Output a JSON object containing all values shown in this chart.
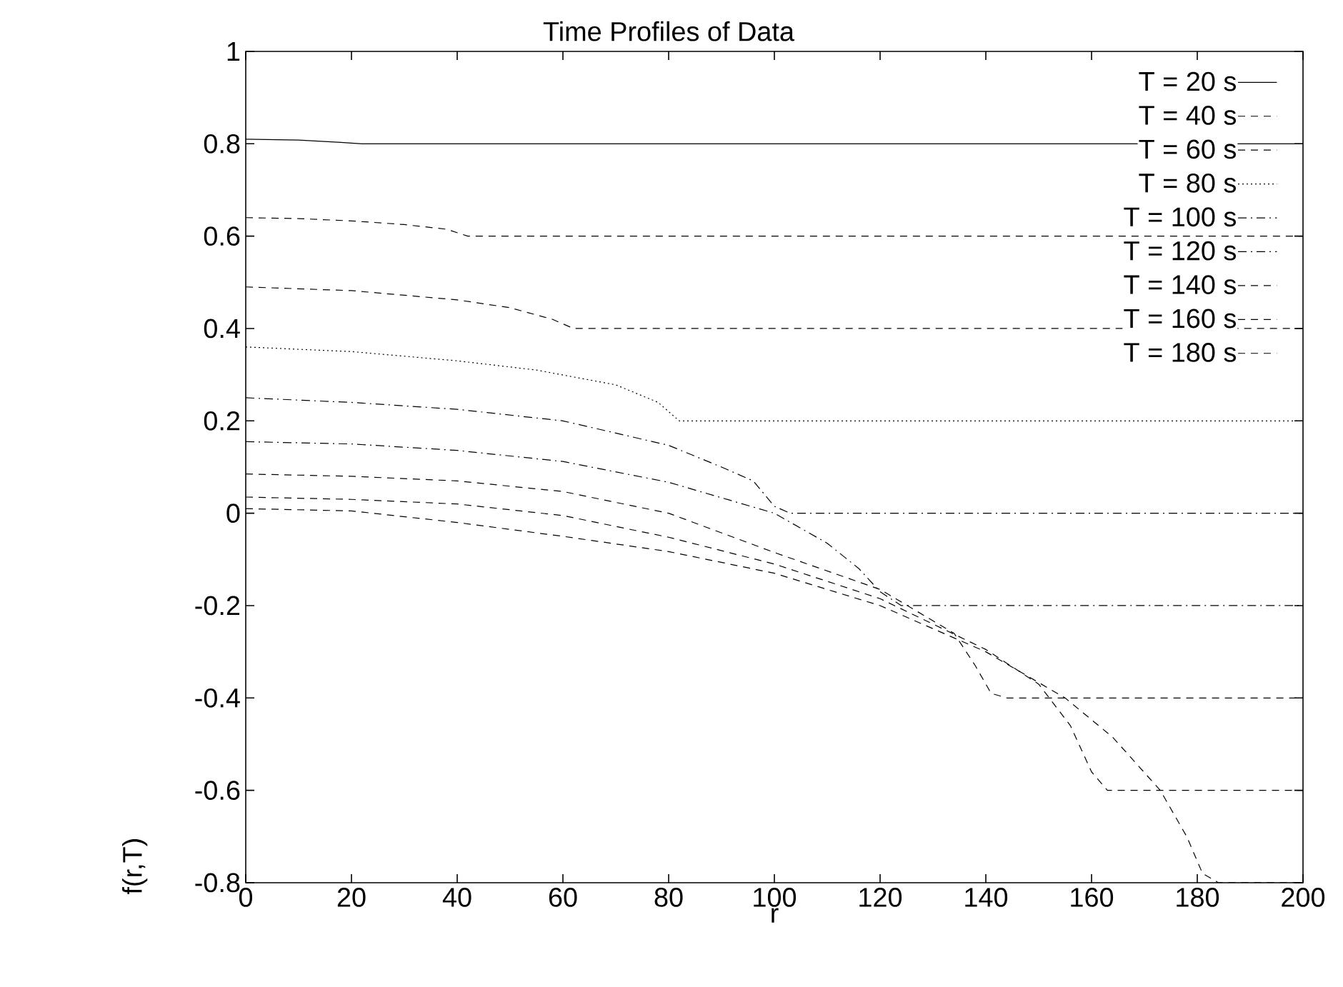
{
  "chart_data": {
    "type": "line",
    "title": "Time Profiles of Data",
    "xlabel": "r",
    "ylabel": "f(r,T)",
    "xlim": [
      0,
      200
    ],
    "ylim": [
      -0.8,
      1
    ],
    "xticks": [
      0,
      20,
      40,
      60,
      80,
      100,
      120,
      140,
      160,
      180,
      200
    ],
    "yticks": [
      -0.8,
      -0.6,
      -0.4,
      -0.2,
      0,
      0.2,
      0.4,
      0.6,
      0.8,
      1
    ],
    "grid": false,
    "legend": "top right",
    "marker": "none",
    "series": [
      {
        "name": "T = 20 s",
        "color": "#000000",
        "line_style": "solid",
        "x": [
          0,
          10,
          18,
          22,
          200
        ],
        "values": [
          0.81,
          0.808,
          0.803,
          0.8,
          0.8
        ]
      },
      {
        "name": "T = 40 s",
        "color": "#000000",
        "line_style": "dashed",
        "x": [
          0,
          10,
          20,
          30,
          38,
          42,
          200
        ],
        "values": [
          0.64,
          0.638,
          0.633,
          0.625,
          0.615,
          0.6,
          0.6
        ]
      },
      {
        "name": "T = 60 s",
        "color": "#000000",
        "line_style": "dashed",
        "x": [
          0,
          20,
          40,
          50,
          58,
          62,
          200
        ],
        "values": [
          0.49,
          0.482,
          0.462,
          0.445,
          0.42,
          0.4,
          0.4
        ]
      },
      {
        "name": "T = 80 s",
        "color": "#000000",
        "line_style": "dotted",
        "x": [
          0,
          20,
          40,
          55,
          70,
          78,
          82,
          200
        ],
        "values": [
          0.36,
          0.35,
          0.33,
          0.31,
          0.278,
          0.24,
          0.2,
          0.2
        ]
      },
      {
        "name": "T = 100 s",
        "color": "#000000",
        "line_style": "dashdot",
        "x": [
          0,
          20,
          40,
          60,
          80,
          90,
          96,
          100,
          103,
          200
        ],
        "values": [
          0.25,
          0.24,
          0.225,
          0.2,
          0.147,
          0.1,
          0.07,
          0.015,
          0,
          0
        ]
      },
      {
        "name": "T = 120 s",
        "color": "#000000",
        "line_style": "dashdot",
        "x": [
          0,
          20,
          40,
          60,
          80,
          100,
          110,
          116,
          120,
          124,
          200
        ],
        "values": [
          0.155,
          0.15,
          0.136,
          0.112,
          0.067,
          0.0,
          -0.065,
          -0.12,
          -0.17,
          -0.2,
          -0.2
        ]
      },
      {
        "name": "T = 140 s",
        "color": "#000000",
        "line_style": "dashed",
        "x": [
          0,
          20,
          40,
          60,
          80,
          100,
          120,
          134,
          138,
          141,
          144,
          200
        ],
        "values": [
          0.085,
          0.08,
          0.07,
          0.047,
          0.0,
          -0.085,
          -0.165,
          -0.26,
          -0.33,
          -0.39,
          -0.4,
          -0.4
        ]
      },
      {
        "name": "T = 160 s",
        "color": "#000000",
        "line_style": "dashed",
        "x": [
          0,
          20,
          40,
          60,
          80,
          100,
          120,
          140,
          150,
          156,
          160,
          163,
          200
        ],
        "values": [
          0.035,
          0.03,
          0.02,
          -0.005,
          -0.052,
          -0.11,
          -0.185,
          -0.295,
          -0.37,
          -0.46,
          -0.56,
          -0.6,
          -0.6
        ]
      },
      {
        "name": "T = 180 s",
        "color": "#000000",
        "line_style": "dashed",
        "x": [
          0,
          20,
          40,
          60,
          80,
          100,
          120,
          140,
          155,
          164,
          173,
          178,
          181,
          184,
          200
        ],
        "values": [
          0.01,
          0.005,
          -0.02,
          -0.05,
          -0.083,
          -0.13,
          -0.2,
          -0.3,
          -0.4,
          -0.485,
          -0.6,
          -0.7,
          -0.78,
          -0.8,
          -0.8
        ]
      }
    ]
  }
}
